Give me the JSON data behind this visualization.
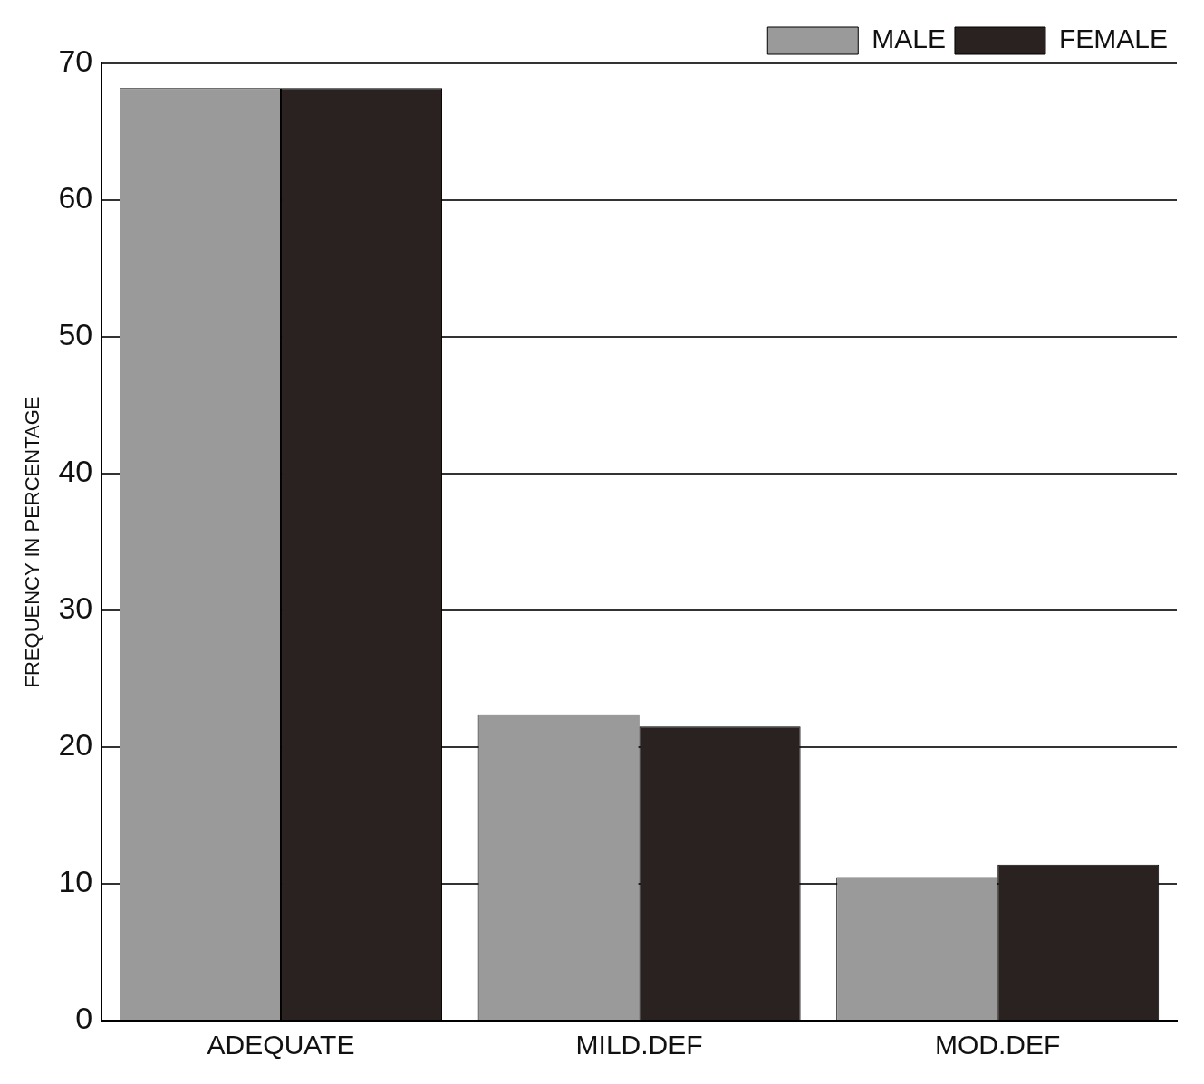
{
  "chart_data": {
    "type": "bar",
    "ylabel": "FREQUENCY IN PERCENTAGE",
    "categories": [
      "ADEQUATE",
      "MILD.DEF",
      "MOD.DEF"
    ],
    "series": [
      {
        "name": "MALE",
        "color": "#9a9a9a",
        "values": [
          68.2,
          22.4,
          10.5
        ]
      },
      {
        "name": "FEMALE",
        "color": "#2a2220",
        "values": [
          68.2,
          21.5,
          11.4
        ]
      }
    ],
    "ylim": [
      0,
      70
    ],
    "yticks": [
      0,
      10,
      20,
      30,
      40,
      50,
      60,
      70
    ],
    "grid": "y",
    "legend": "top right"
  }
}
